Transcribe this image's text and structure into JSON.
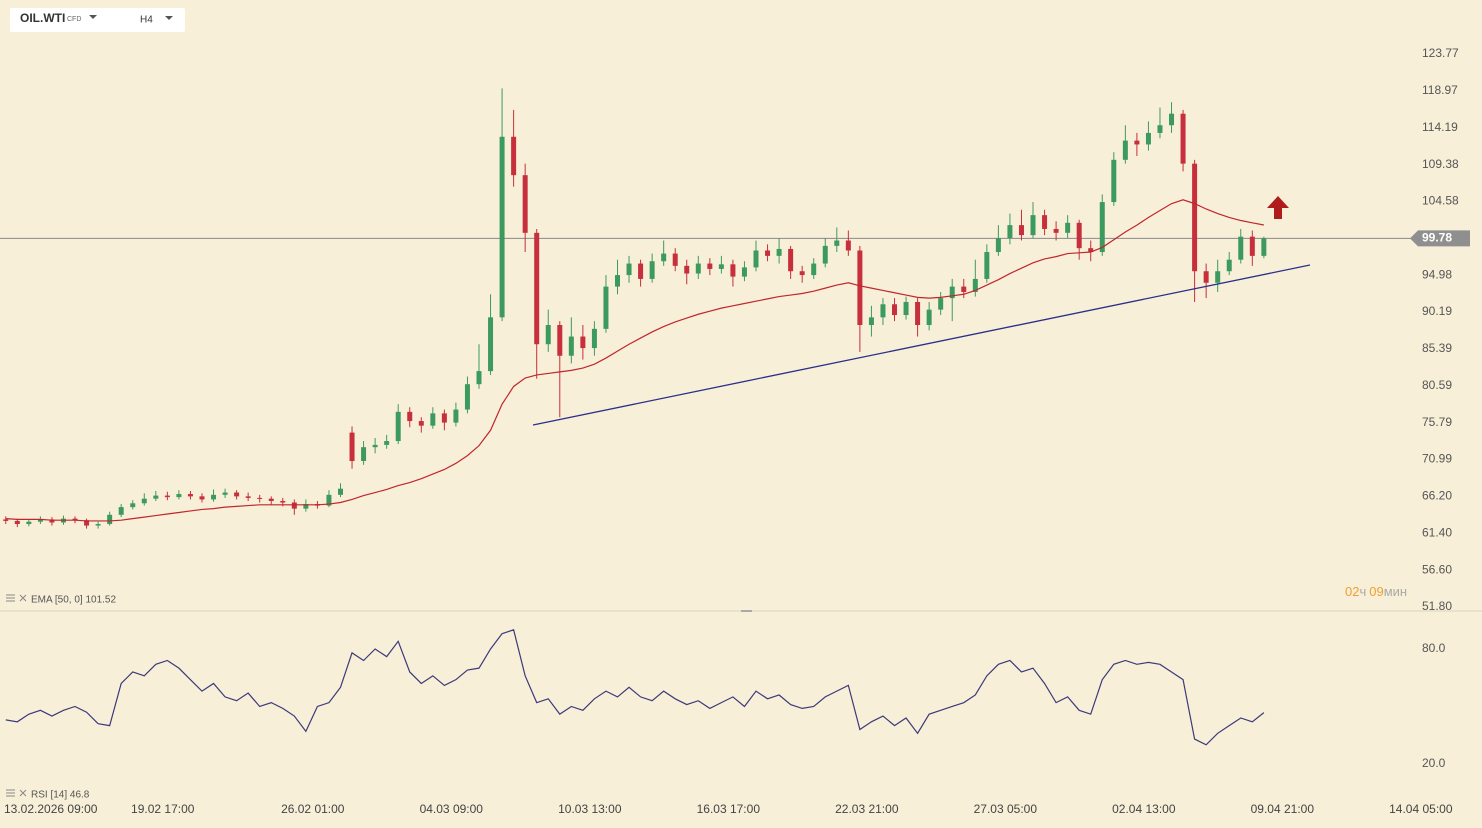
{
  "header": {
    "symbol": "OIL.WTI",
    "asset_class": "CFD",
    "timeframe": "H4"
  },
  "countdown": {
    "hours": "02",
    "hours_unit": "ч",
    "minutes": "09",
    "minutes_unit": "мин"
  },
  "chart_data": [
    {
      "type": "candlestick",
      "xlim": [
        -0.5,
        127.9
      ],
      "ylim": [
        51.41,
        130.8
      ],
      "yticks": [
        123.77,
        118.97,
        114.19,
        109.38,
        104.58,
        94.98,
        90.19,
        85.39,
        80.59,
        75.79,
        70.99,
        {
          "value": 66.2,
          "label": "66.20"
        },
        {
          "value": 61.4,
          "label": "61.40"
        },
        {
          "value": 56.6,
          "label": "56.60"
        },
        {
          "value": 51.8,
          "label": "51.80"
        }
      ],
      "last_price": 99.78,
      "up_color": "#3d9a5f",
      "down_color": "#c62f3b",
      "open": [
        63.2,
        63.0,
        62.6,
        62.9,
        63.2,
        62.8,
        63.3,
        63.1,
        62.4,
        62.6,
        63.8,
        64.8,
        65.3,
        65.9,
        66.3,
        66.1,
        66.5,
        66.2,
        65.8,
        66.4,
        66.7,
        66.2,
        66.0,
        65.9,
        65.6,
        65.4,
        64.6,
        65.2,
        65.0,
        66.4,
        74.5,
        70.8,
        72.6,
        72.9,
        73.4,
        77.2,
        76.0,
        75.4,
        77.0,
        75.8,
        77.5,
        80.8,
        82.5,
        89.5,
        113.0,
        108.0,
        100.5,
        86.0,
        88.5,
        84.5,
        87.0,
        85.5,
        88.0,
        93.5,
        95.0,
        96.5,
        94.5,
        96.8,
        97.8,
        96.2,
        95.2,
        96.5,
        95.8,
        96.4,
        94.8,
        96.0,
        98.2,
        97.5,
        98.4,
        95.5,
        95.0,
        96.5,
        98.8,
        99.5,
        98.2,
        88.5,
        89.5,
        91.2,
        89.8,
        91.5,
        88.5,
        90.5,
        92.0,
        93.5,
        92.8,
        94.5,
        98.0,
        99.8,
        101.5,
        100.2,
        102.8,
        101.0,
        100.5,
        101.8,
        98.5,
        98.0,
        104.5,
        110.0,
        112.5,
        112.0,
        113.5,
        114.5,
        116.0,
        109.5,
        95.5,
        94.0,
        95.5,
        97.0,
        100.0,
        97.5
      ],
      "high": [
        63.6,
        63.3,
        63.2,
        63.6,
        63.5,
        63.7,
        63.6,
        63.3,
        62.9,
        64.2,
        65.2,
        65.7,
        66.6,
        66.9,
        66.8,
        67.0,
        66.9,
        66.6,
        67.1,
        67.2,
        67.0,
        66.7,
        66.4,
        66.2,
        66.0,
        65.8,
        65.8,
        65.6,
        67.0,
        67.9,
        75.3,
        73.4,
        73.8,
        74.2,
        78.2,
        77.8,
        76.5,
        77.8,
        77.5,
        78.4,
        81.8,
        86.0,
        92.5,
        119.3,
        116.5,
        109.5,
        101.0,
        90.5,
        89.0,
        89.5,
        88.5,
        89.0,
        95.0,
        97.0,
        97.5,
        97.0,
        97.8,
        99.5,
        98.5,
        97.0,
        97.5,
        97.2,
        97.5,
        97.0,
        96.8,
        99.5,
        99.0,
        99.8,
        98.8,
        96.2,
        97.2,
        99.8,
        101.2,
        100.8,
        98.8,
        91.0,
        92.0,
        92.0,
        92.2,
        92.0,
        91.5,
        92.8,
        94.5,
        94.5,
        97.0,
        99.0,
        101.5,
        103.0,
        103.5,
        104.5,
        103.5,
        102.0,
        102.8,
        102.2,
        99.5,
        105.5,
        111.0,
        114.5,
        113.5,
        115.0,
        116.8,
        117.5,
        116.5,
        110.0,
        96.5,
        97.0,
        98.0,
        101.0,
        100.8,
        100.0
      ],
      "low": [
        62.6,
        62.2,
        62.3,
        62.6,
        62.4,
        62.5,
        62.7,
        62.0,
        62.0,
        62.4,
        63.5,
        64.5,
        65.0,
        65.6,
        65.7,
        65.8,
        65.8,
        65.4,
        65.5,
        66.0,
        65.8,
        65.6,
        65.4,
        65.1,
        64.9,
        63.8,
        64.2,
        64.6,
        64.8,
        66.1,
        69.8,
        70.3,
        71.8,
        72.4,
        73.0,
        75.2,
        74.5,
        75.0,
        74.8,
        75.3,
        77.0,
        80.2,
        82.0,
        89.0,
        106.5,
        98.0,
        81.5,
        85.0,
        76.5,
        83.5,
        84.0,
        84.5,
        87.5,
        92.5,
        94.0,
        93.5,
        94.0,
        96.2,
        95.5,
        93.8,
        94.5,
        95.0,
        95.2,
        93.5,
        94.2,
        95.5,
        96.8,
        96.5,
        94.5,
        94.0,
        94.5,
        96.0,
        98.0,
        97.5,
        85.0,
        87.0,
        88.5,
        89.0,
        89.2,
        87.0,
        87.8,
        89.8,
        89.0,
        92.0,
        92.2,
        94.0,
        97.5,
        99.0,
        99.5,
        99.8,
        100.2,
        99.5,
        99.8,
        97.0,
        96.8,
        97.5,
        104.0,
        109.5,
        110.5,
        111.2,
        112.8,
        113.5,
        108.5,
        91.5,
        92.0,
        92.8,
        95.0,
        96.5,
        96.2,
        97.2
      ],
      "close": [
        63.0,
        62.6,
        62.9,
        63.2,
        62.8,
        63.3,
        63.1,
        62.4,
        62.6,
        63.8,
        64.8,
        65.3,
        65.9,
        66.3,
        66.1,
        66.5,
        66.2,
        65.8,
        66.4,
        66.7,
        66.2,
        66.0,
        65.9,
        65.6,
        65.4,
        64.6,
        65.2,
        65.0,
        66.4,
        67.2,
        70.8,
        72.6,
        72.9,
        73.4,
        77.2,
        76.0,
        75.4,
        77.0,
        75.8,
        77.5,
        80.8,
        82.5,
        89.5,
        113.0,
        108.0,
        100.5,
        86.0,
        88.5,
        84.5,
        87.0,
        85.5,
        88.0,
        93.5,
        95.0,
        96.5,
        94.5,
        96.8,
        97.8,
        96.2,
        95.2,
        96.5,
        95.8,
        96.4,
        94.8,
        96.0,
        98.2,
        97.5,
        98.4,
        95.5,
        95.0,
        96.5,
        98.8,
        99.5,
        98.2,
        88.5,
        89.5,
        91.2,
        89.8,
        91.5,
        88.5,
        90.5,
        92.0,
        93.5,
        92.8,
        94.5,
        98.0,
        99.8,
        101.5,
        100.2,
        102.8,
        101.0,
        100.5,
        101.8,
        98.5,
        98.0,
        104.5,
        110.0,
        112.5,
        112.0,
        113.5,
        114.5,
        116.0,
        109.5,
        95.5,
        94.0,
        95.5,
        97.0,
        100.0,
        97.5,
        99.78
      ],
      "series": [
        {
          "name": "EMA [50, 0] 101.52",
          "color": "#c0262d",
          "values": [
            63.3,
            63.2,
            63.2,
            63.2,
            63.1,
            63.1,
            63.1,
            63.0,
            63.0,
            63.0,
            63.1,
            63.3,
            63.5,
            63.7,
            63.9,
            64.1,
            64.3,
            64.5,
            64.6,
            64.8,
            64.9,
            65.0,
            65.1,
            65.1,
            65.1,
            65.1,
            65.1,
            65.1,
            65.2,
            65.4,
            65.8,
            66.3,
            66.7,
            67.1,
            67.6,
            68.0,
            68.5,
            69.1,
            69.7,
            70.5,
            71.5,
            72.8,
            74.8,
            78.2,
            80.5,
            81.6,
            82.0,
            82.2,
            82.4,
            82.6,
            82.9,
            83.4,
            84.2,
            85.1,
            86.0,
            86.8,
            87.6,
            88.3,
            88.9,
            89.4,
            89.9,
            90.3,
            90.7,
            91.0,
            91.3,
            91.6,
            91.9,
            92.2,
            92.4,
            92.6,
            92.9,
            93.3,
            93.7,
            94.0,
            93.6,
            93.3,
            93.0,
            92.7,
            92.4,
            92.1,
            92.0,
            92.1,
            92.3,
            92.5,
            93.0,
            93.7,
            94.4,
            95.2,
            95.9,
            96.6,
            97.1,
            97.4,
            97.8,
            97.9,
            98.0,
            98.6,
            99.6,
            100.6,
            101.5,
            102.5,
            103.4,
            104.3,
            104.8,
            104.3,
            103.6,
            103.0,
            102.5,
            102.1,
            101.8,
            101.52
          ]
        }
      ]
    },
    {
      "type": "line",
      "xlim": [
        -0.5,
        127.9
      ],
      "xticks": [
        {
          "value": 1.5,
          "label": "13.02.2026 09:00"
        },
        {
          "value": 13.6,
          "label": "19.02 17:00"
        },
        {
          "value": 26.6,
          "label": "26.02 01:00"
        },
        {
          "value": 38.6,
          "label": "04.03 09:00"
        },
        {
          "value": 50.6,
          "label": "10.03 13:00"
        },
        {
          "value": 62.6,
          "label": "16.03 17:00"
        },
        {
          "value": 74.6,
          "label": "22.03 21:00"
        },
        {
          "value": 86.6,
          "label": "27.03 05:00"
        },
        {
          "value": 98.6,
          "label": "02.04 13:00"
        },
        {
          "value": 110.6,
          "label": "09.04 21:00"
        },
        {
          "value": 122.6,
          "label": "14.04 05:00"
        }
      ],
      "ylim": [
        1.2,
        99.3
      ],
      "yticks": [
        {
          "value": 80,
          "label": "80.0"
        },
        {
          "value": 20,
          "label": "20.0"
        }
      ],
      "series": [
        {
          "name": "RSI [14] 46.8",
          "color": "#3b3a7a",
          "values": [
            43,
            42,
            46,
            48,
            45,
            48,
            50,
            47,
            41,
            40,
            62,
            68,
            66,
            72,
            74,
            70,
            64,
            58,
            62,
            55,
            53,
            57,
            50,
            52,
            49,
            45,
            37,
            50,
            52,
            60,
            78,
            74,
            80,
            76,
            84,
            68,
            62,
            66,
            61,
            64,
            69,
            70,
            80,
            88,
            90,
            66,
            52,
            54,
            46,
            50,
            48,
            54,
            58,
            55,
            60,
            55,
            53,
            58,
            54,
            51,
            53,
            49,
            52,
            55,
            50,
            58,
            54,
            56,
            51,
            49,
            50,
            55,
            58,
            61,
            38,
            42,
            45,
            40,
            44,
            36,
            46,
            48,
            50,
            52,
            56,
            66,
            72,
            74,
            68,
            70,
            62,
            52,
            55,
            48,
            46,
            64,
            72,
            74,
            72,
            73,
            72,
            68,
            64,
            33,
            30,
            36,
            40,
            44,
            42,
            46.8
          ]
        }
      ]
    }
  ]
}
